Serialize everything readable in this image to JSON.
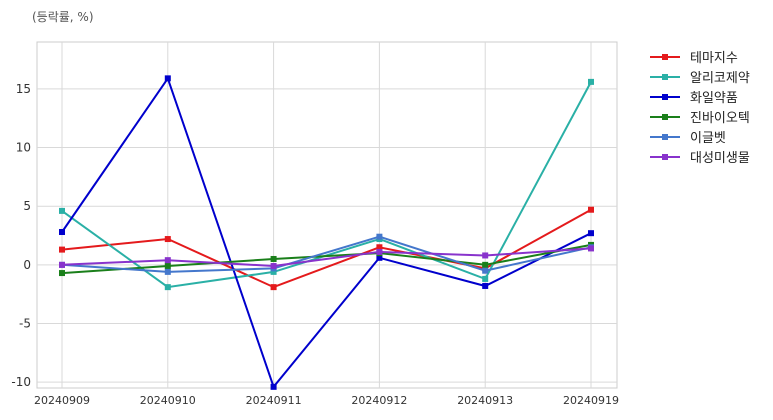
{
  "chart_data": {
    "type": "line",
    "unit_label": "(등락률, %)",
    "categories": [
      "20240909",
      "20240910",
      "20240911",
      "20240912",
      "20240913",
      "20240919"
    ],
    "ylim": [
      -10.5,
      19
    ],
    "yticks": [
      -10,
      -5,
      0,
      5,
      10,
      15
    ],
    "grid": true,
    "legend_position": "right",
    "series": [
      {
        "name": "테마지수",
        "color": "#e41a1c",
        "values": [
          1.3,
          2.2,
          -1.9,
          1.5,
          -0.3,
          4.7
        ]
      },
      {
        "name": "알리코제약",
        "color": "#2ab0a6",
        "values": [
          4.6,
          -1.9,
          -0.6,
          2.2,
          -1.2,
          15.6
        ]
      },
      {
        "name": "화일약품",
        "color": "#0000cc",
        "values": [
          2.8,
          15.9,
          -10.4,
          0.6,
          -1.8,
          2.7
        ]
      },
      {
        "name": "진바이오텍",
        "color": "#1a7f1a",
        "values": [
          -0.7,
          -0.1,
          0.5,
          1.0,
          0.0,
          1.7
        ]
      },
      {
        "name": "이글벳",
        "color": "#4477cc",
        "values": [
          0.0,
          -0.6,
          -0.3,
          2.4,
          -0.5,
          1.5
        ]
      },
      {
        "name": "대성미생물",
        "color": "#8833cc",
        "values": [
          0.0,
          0.4,
          -0.1,
          1.1,
          0.8,
          1.4
        ]
      }
    ]
  }
}
